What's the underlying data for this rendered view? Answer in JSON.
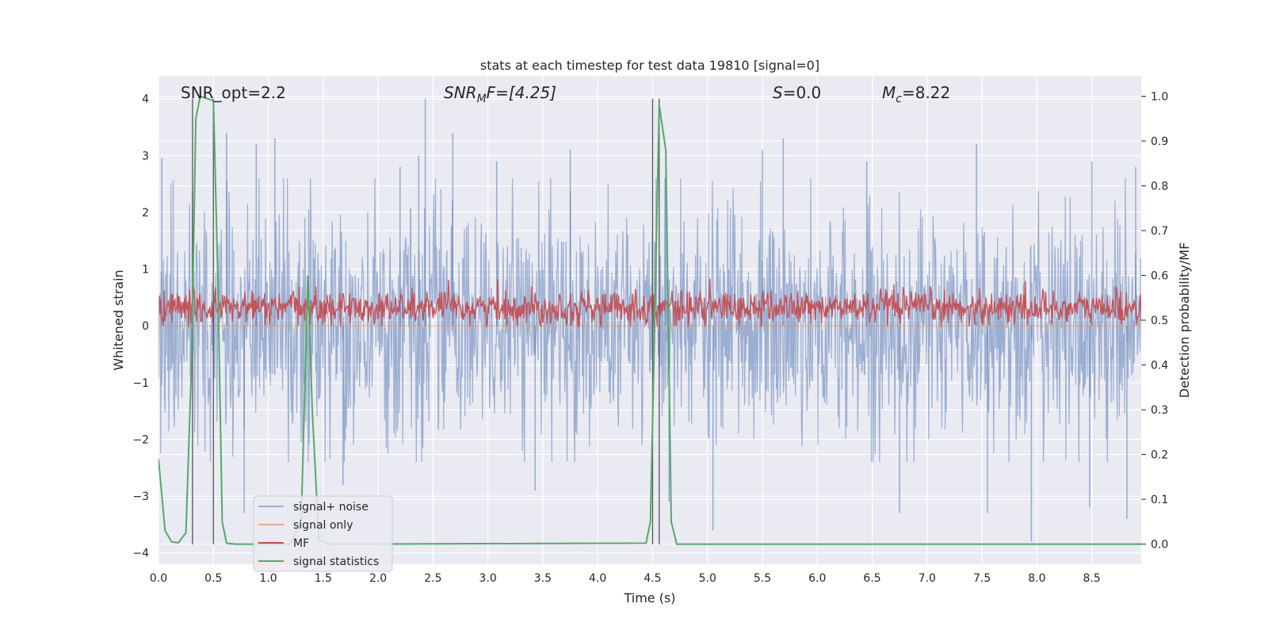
{
  "chart_data": {
    "type": "line",
    "title": "stats at each timestep for test data 19810 [signal=0]",
    "xlabel": "Time (s)",
    "ylabel_left": "Whitened strain",
    "ylabel_right": "Detection probability/MF",
    "xlim": [
      0,
      8.95
    ],
    "ylim_left": [
      -4.2,
      4.4
    ],
    "ylim_right": [
      -0.045,
      1.045
    ],
    "x_ticks": [
      "0.0",
      "0.5",
      "1.0",
      "1.5",
      "2.0",
      "2.5",
      "3.0",
      "3.5",
      "4.0",
      "4.5",
      "5.0",
      "5.5",
      "6.0",
      "6.5",
      "7.0",
      "7.5",
      "8.0",
      "8.5"
    ],
    "y_ticks_left": [
      "−4",
      "−3",
      "−2",
      "−1",
      "0",
      "1",
      "2",
      "3",
      "4"
    ],
    "y_ticks_right": [
      "0.0",
      "0.1",
      "0.2",
      "0.3",
      "0.4",
      "0.5",
      "0.6",
      "0.7",
      "0.8",
      "0.9",
      "1.0"
    ],
    "grid": true,
    "legend_position": "lower-left",
    "annotations": {
      "snr_opt": "SNR_opt=2.2",
      "snr_mf_main": "SNR",
      "snr_mf_sub": "M",
      "snr_mf_rest": "F=[4.25]",
      "s_main": "S",
      "s_rest": "=0.0",
      "mc_main": "M",
      "mc_sub": "c",
      "mc_rest": "=8.22"
    },
    "vertical_lines_x": [
      0.31,
      0.5,
      4.5,
      4.56
    ],
    "series": [
      {
        "name": "signal+ noise",
        "color": "#4c72b0",
        "envelope_upper_typical": 1.8,
        "envelope_lower_typical": -1.5,
        "spikes_up": [
          [
            0.03,
            2.95
          ],
          [
            0.62,
            3.4
          ],
          [
            0.89,
            3.2
          ],
          [
            1.06,
            3.3
          ],
          [
            2.2,
            2.8
          ],
          [
            2.37,
            3.0
          ],
          [
            2.43,
            4.0
          ],
          [
            2.68,
            3.4
          ],
          [
            3.08,
            2.9
          ],
          [
            3.75,
            3.1
          ],
          [
            4.62,
            2.8
          ],
          [
            5.5,
            3.1
          ],
          [
            5.69,
            3.3
          ],
          [
            6.45,
            2.9
          ],
          [
            7.45,
            3.2
          ],
          [
            8.5,
            2.9
          ],
          [
            8.9,
            2.8
          ]
        ],
        "spikes_down": [
          [
            0.78,
            -3.3
          ],
          [
            1.68,
            -2.8
          ],
          [
            3.43,
            -2.9
          ],
          [
            4.65,
            -3.1
          ],
          [
            5.05,
            -3.6
          ],
          [
            6.75,
            -3.3
          ],
          [
            7.55,
            -3.3
          ],
          [
            7.95,
            -3.8
          ],
          [
            8.48,
            -3.2
          ],
          [
            8.82,
            -3.4
          ]
        ]
      },
      {
        "name": "signal only",
        "color": "#dd8452",
        "values": [
          [
            0,
            0
          ],
          [
            8.95,
            0
          ]
        ]
      },
      {
        "name": "MF",
        "color": "#c44e52",
        "envelope_upper_typical": 0.65,
        "envelope_lower_typical": 0.05,
        "max": 0.85,
        "min": -0.02
      },
      {
        "name": "signal statistics",
        "color": "#55a868",
        "points": [
          [
            0.0,
            0.19
          ],
          [
            0.06,
            0.03
          ],
          [
            0.12,
            0.005
          ],
          [
            0.18,
            0.003
          ],
          [
            0.25,
            0.025
          ],
          [
            0.3,
            0.4
          ],
          [
            0.34,
            0.95
          ],
          [
            0.38,
            1.0
          ],
          [
            0.44,
            0.995
          ],
          [
            0.5,
            0.99
          ],
          [
            0.54,
            0.6
          ],
          [
            0.58,
            0.05
          ],
          [
            0.62,
            0.002
          ],
          [
            0.7,
            0.0
          ],
          [
            1.2,
            0.0
          ],
          [
            1.3,
            0.05
          ],
          [
            1.36,
            0.6
          ],
          [
            1.4,
            0.3
          ],
          [
            1.46,
            0.01
          ],
          [
            1.55,
            0.0
          ],
          [
            4.44,
            0.002
          ],
          [
            4.48,
            0.05
          ],
          [
            4.52,
            0.5
          ],
          [
            4.56,
            0.98
          ],
          [
            4.62,
            0.88
          ],
          [
            4.67,
            0.05
          ],
          [
            4.72,
            0.0
          ],
          [
            8.95,
            0.0
          ]
        ]
      }
    ]
  }
}
